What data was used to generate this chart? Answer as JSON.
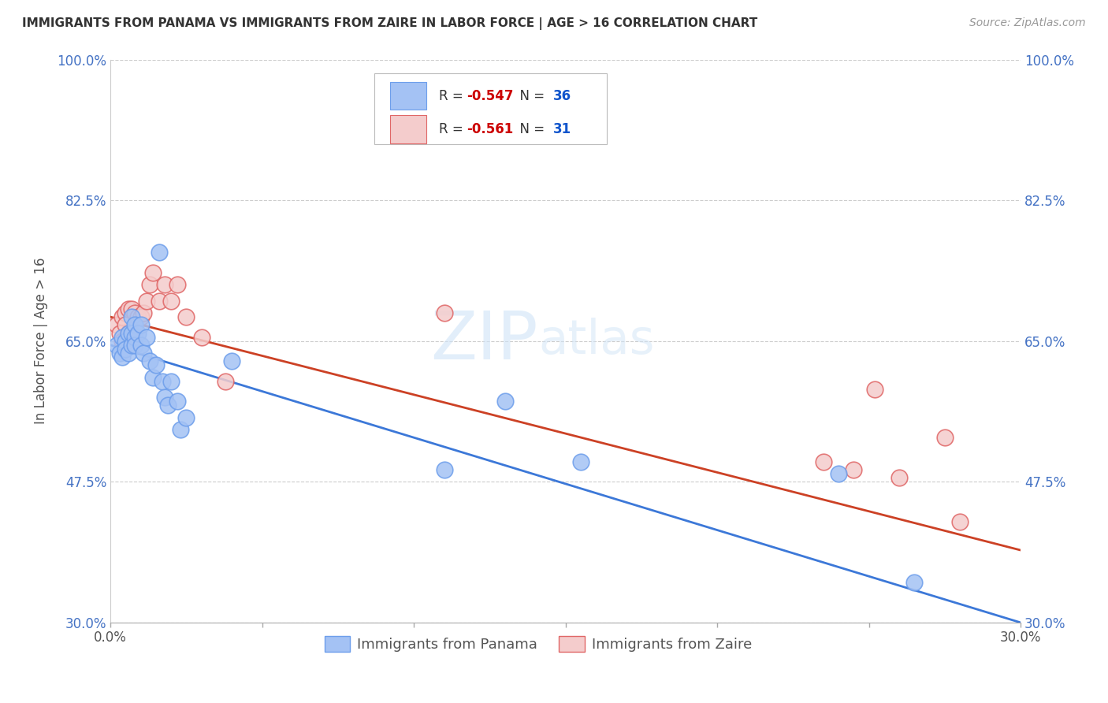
{
  "title": "IMMIGRANTS FROM PANAMA VS IMMIGRANTS FROM ZAIRE IN LABOR FORCE | AGE > 16 CORRELATION CHART",
  "source": "Source: ZipAtlas.com",
  "ylabel": "In Labor Force | Age > 16",
  "xlim": [
    0.0,
    0.3
  ],
  "ylim": [
    0.3,
    1.0
  ],
  "yticks": [
    0.3,
    0.475,
    0.65,
    0.825,
    1.0
  ],
  "ytick_labels": [
    "30.0%",
    "47.5%",
    "65.0%",
    "82.5%",
    "100.0%"
  ],
  "xticks": [
    0.0,
    0.05,
    0.1,
    0.15,
    0.2,
    0.25,
    0.3
  ],
  "xtick_labels": [
    "0.0%",
    "",
    "",
    "",
    "",
    "",
    "30.0%"
  ],
  "panama_color": "#a4c2f4",
  "zaire_color": "#f4cccc",
  "panama_edge_color": "#6d9eeb",
  "zaire_edge_color": "#e06666",
  "panama_line_color": "#3c78d8",
  "zaire_line_color": "#cc4125",
  "panama_R": -0.547,
  "panama_N": 36,
  "zaire_R": -0.561,
  "zaire_N": 31,
  "panama_scatter_x": [
    0.002,
    0.003,
    0.004,
    0.004,
    0.005,
    0.005,
    0.006,
    0.006,
    0.007,
    0.007,
    0.007,
    0.008,
    0.008,
    0.008,
    0.009,
    0.01,
    0.01,
    0.011,
    0.012,
    0.013,
    0.014,
    0.015,
    0.016,
    0.017,
    0.018,
    0.019,
    0.02,
    0.022,
    0.023,
    0.025,
    0.04,
    0.11,
    0.13,
    0.155,
    0.24,
    0.265
  ],
  "panama_scatter_y": [
    0.645,
    0.635,
    0.655,
    0.63,
    0.65,
    0.64,
    0.66,
    0.635,
    0.68,
    0.66,
    0.645,
    0.67,
    0.655,
    0.645,
    0.66,
    0.67,
    0.645,
    0.635,
    0.655,
    0.625,
    0.605,
    0.62,
    0.76,
    0.6,
    0.58,
    0.57,
    0.6,
    0.575,
    0.54,
    0.555,
    0.625,
    0.49,
    0.575,
    0.5,
    0.485,
    0.35
  ],
  "zaire_scatter_x": [
    0.002,
    0.003,
    0.004,
    0.004,
    0.005,
    0.005,
    0.006,
    0.006,
    0.007,
    0.008,
    0.008,
    0.009,
    0.01,
    0.011,
    0.012,
    0.013,
    0.014,
    0.016,
    0.018,
    0.02,
    0.022,
    0.025,
    0.03,
    0.038,
    0.11,
    0.235,
    0.245,
    0.252,
    0.26,
    0.275,
    0.28
  ],
  "zaire_scatter_y": [
    0.67,
    0.66,
    0.68,
    0.65,
    0.685,
    0.67,
    0.69,
    0.66,
    0.69,
    0.685,
    0.665,
    0.68,
    0.68,
    0.685,
    0.7,
    0.72,
    0.735,
    0.7,
    0.72,
    0.7,
    0.72,
    0.68,
    0.655,
    0.6,
    0.685,
    0.5,
    0.49,
    0.59,
    0.48,
    0.53,
    0.425
  ],
  "panama_line_x0": 0.0,
  "panama_line_y0": 0.645,
  "panama_line_x1": 0.3,
  "panama_line_y1": 0.3,
  "zaire_line_x0": 0.0,
  "zaire_line_y0": 0.68,
  "zaire_line_x1": 0.3,
  "zaire_line_y1": 0.39,
  "watermark_zip": "ZIP",
  "watermark_atlas": "atlas",
  "background_color": "#ffffff",
  "grid_color": "#cccccc"
}
